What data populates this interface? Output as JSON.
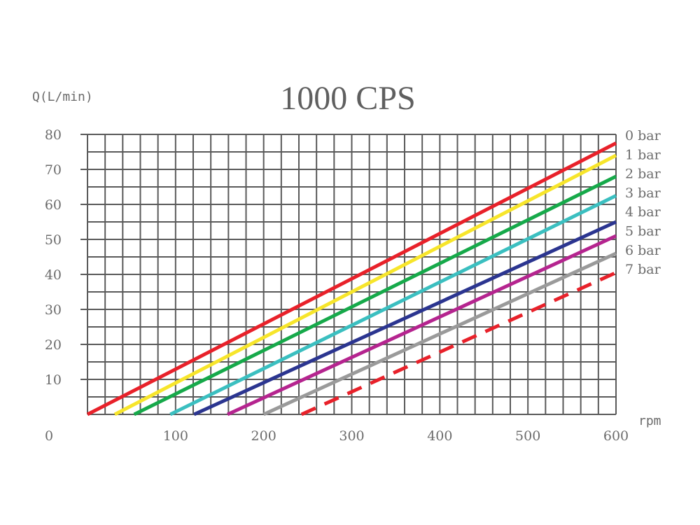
{
  "chart_data": {
    "type": "line",
    "title": "1000 CPS",
    "ylabel": "Q(L/min)",
    "xlabel": "rpm",
    "origin_label": "0",
    "xlim": [
      0,
      600
    ],
    "ylim": [
      0,
      80
    ],
    "x_ticks": [
      100,
      200,
      300,
      400,
      500,
      600
    ],
    "y_ticks": [
      10,
      20,
      30,
      40,
      50,
      60,
      70,
      80
    ],
    "grid": true,
    "legend_position": "right",
    "series": [
      {
        "name": "0 bar",
        "color": "#e8212a",
        "dashed": false,
        "x": [
          0,
          600
        ],
        "y": [
          0,
          77.5
        ]
      },
      {
        "name": "1 bar",
        "color": "#f7e52b",
        "dashed": false,
        "x": [
          31,
          600
        ],
        "y": [
          0,
          74
        ]
      },
      {
        "name": "2 bar",
        "color": "#16a94a",
        "dashed": false,
        "x": [
          53,
          600
        ],
        "y": [
          0,
          68
        ]
      },
      {
        "name": "3 bar",
        "color": "#3bbfc0",
        "dashed": false,
        "x": [
          94,
          600
        ],
        "y": [
          0,
          62.5
        ]
      },
      {
        "name": "4 bar",
        "color": "#2b3590",
        "dashed": false,
        "x": [
          121,
          600
        ],
        "y": [
          0,
          55
        ]
      },
      {
        "name": "5 bar",
        "color": "#b5248f",
        "dashed": false,
        "x": [
          159,
          600
        ],
        "y": [
          0,
          51
        ]
      },
      {
        "name": "6 bar",
        "color": "#9a9a9a",
        "dashed": false,
        "x": [
          200,
          600
        ],
        "y": [
          0,
          46
        ]
      },
      {
        "name": "7 bar",
        "color": "#e8212a",
        "dashed": true,
        "x": [
          243,
          600
        ],
        "y": [
          0,
          40.5
        ]
      }
    ]
  }
}
